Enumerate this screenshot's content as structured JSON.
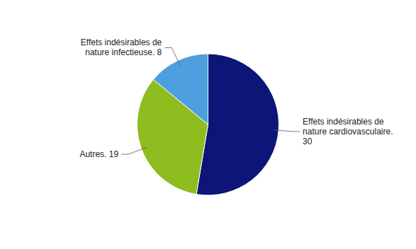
{
  "chart_data": {
    "type": "pie",
    "categories": [
      "Effets indésirables de\nnature cardiovasculaire.\n30",
      "Autres. 19",
      "Effets indésirables de\nnature infectieuse. 8"
    ],
    "values": [
      30,
      19,
      8
    ],
    "colors": [
      "#0d1578",
      "#8fbc1e",
      "#4d9fe0"
    ]
  }
}
